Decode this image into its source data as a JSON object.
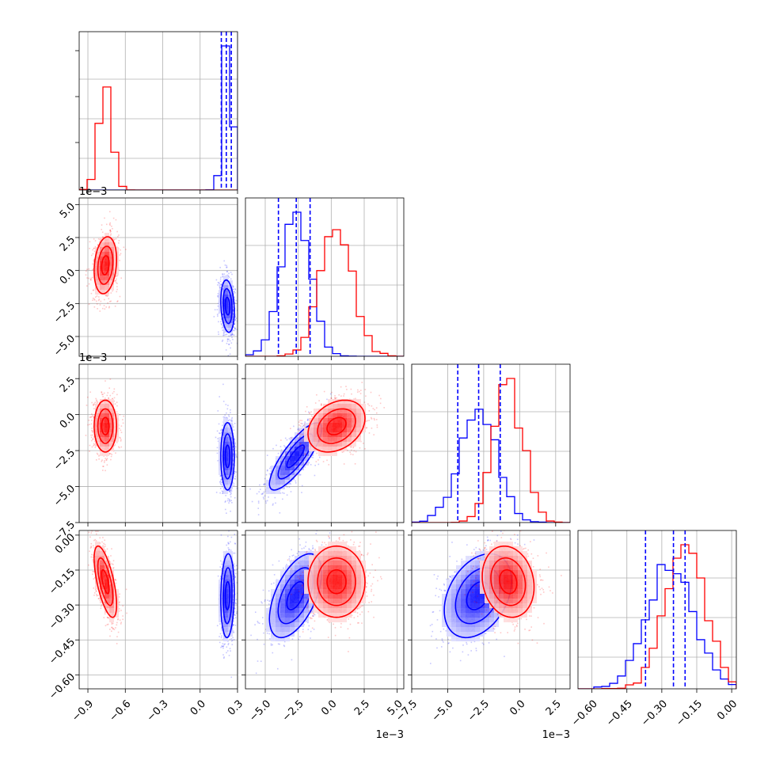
{
  "colors": {
    "blue": "#0000ff",
    "red": "#ff0000",
    "grid": "#b0b0b0"
  },
  "chart_data": {
    "type": "corner",
    "grid": true,
    "legend": "none",
    "parameters": [
      {
        "range": [
          -0.97,
          0.3
        ],
        "ticks": [
          -0.9,
          -0.6,
          -0.3,
          0.0,
          0.3
        ],
        "tick_labels": [
          "−0.9",
          "−0.6",
          "−0.3",
          "0.0",
          "0.3"
        ],
        "offset_label": ""
      },
      {
        "range": [
          -6.5,
          5.5
        ],
        "ticks": [
          -5.0,
          -2.5,
          0.0,
          2.5,
          5.0
        ],
        "tick_labels": [
          "−5.0",
          "−2.5",
          "0.0",
          "2.5",
          "5.0"
        ],
        "offset_label": "1e−3"
      },
      {
        "range": [
          -7.5,
          3.5
        ],
        "ticks": [
          -7.5,
          -5.0,
          -2.5,
          0.0,
          2.5
        ],
        "tick_labels": [
          "−7.5",
          "−5.0",
          "−2.5",
          "0.0",
          "2.5"
        ],
        "offset_label": "1e−3"
      },
      {
        "range": [
          -0.66,
          0.02
        ],
        "ticks": [
          -0.6,
          -0.45,
          -0.3,
          -0.15,
          0.0
        ],
        "tick_labels": [
          "−0.60",
          "−0.45",
          "−0.30",
          "−0.15",
          "0.00"
        ],
        "offset_label": ""
      }
    ],
    "series": [
      {
        "color": "#0000ff",
        "means": [
          0.22,
          -2.7,
          -2.9,
          -0.26
        ],
        "sigmas": [
          0.03,
          1.1,
          1.3,
          0.1
        ],
        "corr": {
          "1-0": -0.2,
          "2-0": 0.0,
          "2-1": 0.82,
          "3-0": 0.1,
          "3-1": 0.55,
          "3-2": 0.35
        },
        "quantiles": [
          [
            0.17,
            0.21,
            0.25
          ],
          [
            -4.0,
            -2.65,
            -1.6
          ],
          [
            -4.3,
            -2.85,
            -1.35
          ],
          [
            -0.37,
            -0.25,
            -0.2
          ]
        ]
      },
      {
        "color": "#ff0000",
        "means": [
          -0.76,
          0.4,
          -0.8,
          -0.2
        ],
        "sigmas": [
          0.05,
          1.2,
          1.0,
          0.085
        ],
        "corr": {
          "1-0": 0.2,
          "2-0": 0.0,
          "2-1": 0.3,
          "3-0": -0.65,
          "3-1": 0.0,
          "3-2": -0.15
        },
        "quantiles": []
      }
    ]
  }
}
